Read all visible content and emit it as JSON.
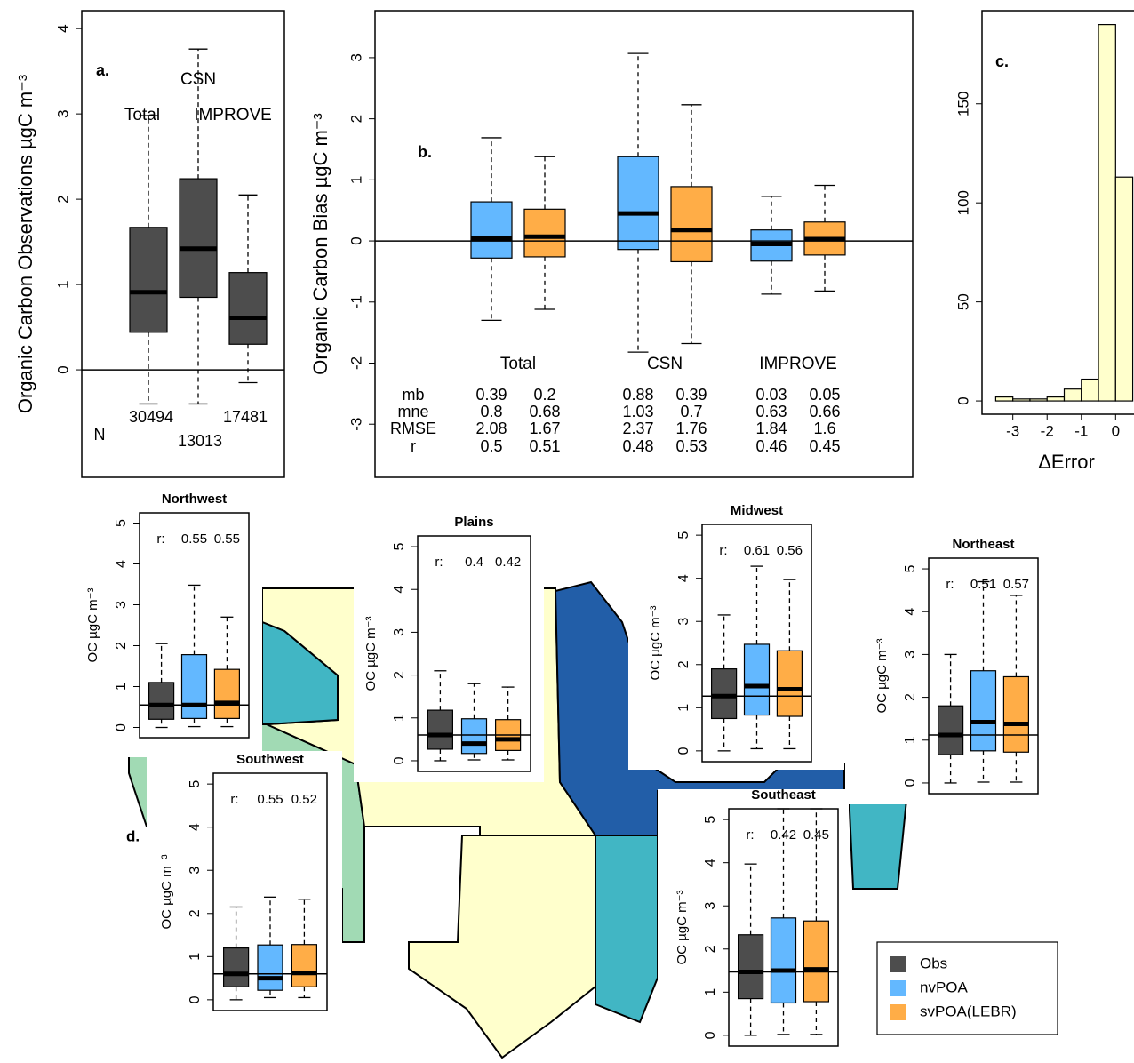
{
  "chart_data": [
    {
      "type": "boxplot",
      "label": "a.",
      "ylabel": "Organic Carbon  Observations  µgC m⁻³",
      "categories": [
        "Total",
        "CSN",
        "IMPROVE"
      ],
      "n_label": "N",
      "counts": [
        30494,
        13013,
        17481
      ],
      "ylim": [
        -1.26,
        4.21
      ],
      "yticks": [
        0,
        1,
        2,
        3,
        4
      ],
      "series": [
        {
          "color": "#4d4d4d",
          "low": [
            -0.4,
            -0.4,
            -0.15
          ],
          "q1": [
            0.44,
            0.85,
            0.3
          ],
          "median": [
            0.91,
            1.42,
            0.61
          ],
          "q3": [
            1.67,
            2.24,
            1.14
          ],
          "high": [
            2.98,
            3.76,
            2.05
          ]
        }
      ]
    },
    {
      "type": "boxplot",
      "label": "b.",
      "ylabel": "Organic Carbon  Bias  µgC m⁻³",
      "categories": [
        "Total",
        "CSN",
        "IMPROVE"
      ],
      "ylim": [
        -3.87,
        3.77
      ],
      "yticks": [
        -3,
        -2,
        -1,
        0,
        1,
        2,
        3
      ],
      "series": [
        {
          "color": "#63b8ff",
          "low": [
            -1.3,
            -1.82,
            -0.87
          ],
          "q1": [
            -0.28,
            -0.14,
            -0.33
          ],
          "median": [
            0.04,
            0.45,
            -0.05
          ],
          "q3": [
            0.64,
            1.38,
            0.18
          ],
          "high": [
            1.69,
            3.07,
            0.73
          ]
        },
        {
          "color": "#ffad47",
          "low": [
            -1.12,
            -1.68,
            -0.82
          ],
          "q1": [
            -0.26,
            -0.34,
            -0.23
          ],
          "median": [
            0.07,
            0.18,
            0.03
          ],
          "q3": [
            0.52,
            0.89,
            0.31
          ],
          "high": [
            1.38,
            2.23,
            0.91
          ]
        }
      ],
      "stats": {
        "rows": [
          "mb",
          "mne",
          "RMSE",
          "r"
        ],
        "values": [
          [
            0.39,
            0.2,
            0.88,
            0.39,
            0.03,
            0.05
          ],
          [
            0.8,
            0.68,
            1.03,
            0.7,
            0.63,
            0.66
          ],
          [
            2.08,
            1.67,
            2.37,
            1.76,
            1.84,
            1.6
          ],
          [
            0.5,
            0.51,
            0.48,
            0.53,
            0.46,
            0.45
          ]
        ]
      }
    },
    {
      "type": "histogram",
      "label": "c.",
      "xlabel": "ΔError",
      "color": "#ffffcc",
      "bins": [
        -3.5,
        -3,
        -2.5,
        -2,
        -1.5,
        -1,
        -0.5,
        0,
        0.5
      ],
      "counts": [
        2,
        1,
        1,
        2,
        6,
        11,
        190,
        113
      ],
      "xlim": [
        -3.9,
        0.9
      ],
      "xticks": [
        -3,
        -2,
        -1,
        0
      ],
      "ylim": [
        -6.7,
        197
      ],
      "yticks": [
        0,
        50,
        100,
        150
      ]
    },
    {
      "type": "boxplot",
      "title": "Northwest",
      "ylabel": "OC  µgC m⁻³",
      "r_label": "r:",
      "r": [
        0.55,
        0.55
      ],
      "ylim": [
        -0.25,
        5.25
      ],
      "yticks": [
        0,
        1,
        2,
        3,
        4,
        5
      ],
      "series": [
        {
          "color": "#4d4d4d",
          "low": [
            0
          ],
          "q1": [
            0.2
          ],
          "median": [
            0.55
          ],
          "q3": [
            1.1
          ],
          "high": [
            2.05
          ]
        },
        {
          "color": "#63b8ff",
          "low": [
            0.02
          ],
          "q1": [
            0.22
          ],
          "median": [
            0.55
          ],
          "q3": [
            1.78
          ],
          "high": [
            3.48
          ]
        },
        {
          "color": "#ffad47",
          "low": [
            0.02
          ],
          "q1": [
            0.22
          ],
          "median": [
            0.6
          ],
          "q3": [
            1.42
          ],
          "high": [
            2.7
          ]
        }
      ]
    },
    {
      "type": "boxplot",
      "title": "Plains",
      "ylabel": "OC  µgC m⁻³",
      "r_label": "r:",
      "r": [
        0.4,
        0.42
      ],
      "ylim": [
        -0.25,
        5.25
      ],
      "yticks": [
        0,
        1,
        2,
        3,
        4,
        5
      ],
      "series": [
        {
          "color": "#4d4d4d",
          "low": [
            0
          ],
          "q1": [
            0.27
          ],
          "median": [
            0.6
          ],
          "q3": [
            1.18
          ],
          "high": [
            2.1
          ]
        },
        {
          "color": "#63b8ff",
          "low": [
            0.02
          ],
          "q1": [
            0.17
          ],
          "median": [
            0.4
          ],
          "q3": [
            0.98
          ],
          "high": [
            1.8
          ]
        },
        {
          "color": "#ffad47",
          "low": [
            0.02
          ],
          "q1": [
            0.24
          ],
          "median": [
            0.5
          ],
          "q3": [
            0.96
          ],
          "high": [
            1.72
          ]
        }
      ]
    },
    {
      "type": "boxplot",
      "title": "Midwest",
      "ylabel": "OC  µgC m⁻³",
      "r_label": "r:",
      "r": [
        0.61,
        0.56
      ],
      "ylim": [
        -0.25,
        5.25
      ],
      "yticks": [
        0,
        1,
        2,
        3,
        4,
        5
      ],
      "series": [
        {
          "color": "#4d4d4d",
          "low": [
            0
          ],
          "q1": [
            0.75
          ],
          "median": [
            1.27
          ],
          "q3": [
            1.9
          ],
          "high": [
            3.15
          ]
        },
        {
          "color": "#63b8ff",
          "low": [
            0.05
          ],
          "q1": [
            0.83
          ],
          "median": [
            1.5
          ],
          "q3": [
            2.47
          ],
          "high": [
            4.28
          ]
        },
        {
          "color": "#ffad47",
          "low": [
            0.05
          ],
          "q1": [
            0.8
          ],
          "median": [
            1.43
          ],
          "q3": [
            2.32
          ],
          "high": [
            3.97
          ]
        }
      ]
    },
    {
      "type": "boxplot",
      "title": "Northeast",
      "ylabel": "OC  µgC m⁻³",
      "r_label": "r:",
      "r": [
        0.51,
        0.57
      ],
      "ylim": [
        -0.25,
        5.25
      ],
      "yticks": [
        0,
        1,
        2,
        3,
        4,
        5
      ],
      "series": [
        {
          "color": "#4d4d4d",
          "low": [
            0
          ],
          "q1": [
            0.66
          ],
          "median": [
            1.12
          ],
          "q3": [
            1.8
          ],
          "high": [
            3.0
          ]
        },
        {
          "color": "#63b8ff",
          "low": [
            0.02
          ],
          "q1": [
            0.75
          ],
          "median": [
            1.42
          ],
          "q3": [
            2.62
          ],
          "high": [
            4.7
          ]
        },
        {
          "color": "#ffad47",
          "low": [
            0.02
          ],
          "q1": [
            0.72
          ],
          "median": [
            1.38
          ],
          "q3": [
            2.48
          ],
          "high": [
            4.38
          ]
        }
      ]
    },
    {
      "type": "boxplot",
      "title": "Southwest",
      "ylabel": "OC  µgC m⁻³",
      "r_label": "r:",
      "r": [
        0.55,
        0.52
      ],
      "ylim": [
        -0.25,
        5.25
      ],
      "yticks": [
        0,
        1,
        2,
        3,
        4,
        5
      ],
      "series": [
        {
          "color": "#4d4d4d",
          "low": [
            0
          ],
          "q1": [
            0.3
          ],
          "median": [
            0.6
          ],
          "q3": [
            1.2
          ],
          "high": [
            2.15
          ]
        },
        {
          "color": "#63b8ff",
          "low": [
            0.05
          ],
          "q1": [
            0.22
          ],
          "median": [
            0.5
          ],
          "q3": [
            1.27
          ],
          "high": [
            2.38
          ]
        },
        {
          "color": "#ffad47",
          "low": [
            0.05
          ],
          "q1": [
            0.3
          ],
          "median": [
            0.62
          ],
          "q3": [
            1.28
          ],
          "high": [
            2.33
          ]
        }
      ]
    },
    {
      "type": "boxplot",
      "title": "Southeast",
      "ylabel": "OC  µgC m⁻³",
      "r_label": "r:",
      "r": [
        0.42,
        0.45
      ],
      "ylim": [
        -0.25,
        5.25
      ],
      "yticks": [
        0,
        1,
        2,
        3,
        4,
        5
      ],
      "series": [
        {
          "name": "Obs",
          "color": "#4d4d4d",
          "low": [
            0
          ],
          "q1": [
            0.85
          ],
          "median": [
            1.47
          ],
          "q3": [
            2.33
          ],
          "high": [
            3.97
          ]
        },
        {
          "name": "nvPOA",
          "color": "#63b8ff",
          "low": [
            0.02
          ],
          "q1": [
            0.75
          ],
          "median": [
            1.5
          ],
          "q3": [
            2.72
          ],
          "high": [
            5.25
          ]
        },
        {
          "name": "svPOA(LEBR)",
          "color": "#ffad47",
          "low": [
            0.02
          ],
          "q1": [
            0.78
          ],
          "median": [
            1.53
          ],
          "q3": [
            2.65
          ],
          "high": [
            5.25
          ]
        }
      ]
    }
  ],
  "panel_d_label": "d."
}
